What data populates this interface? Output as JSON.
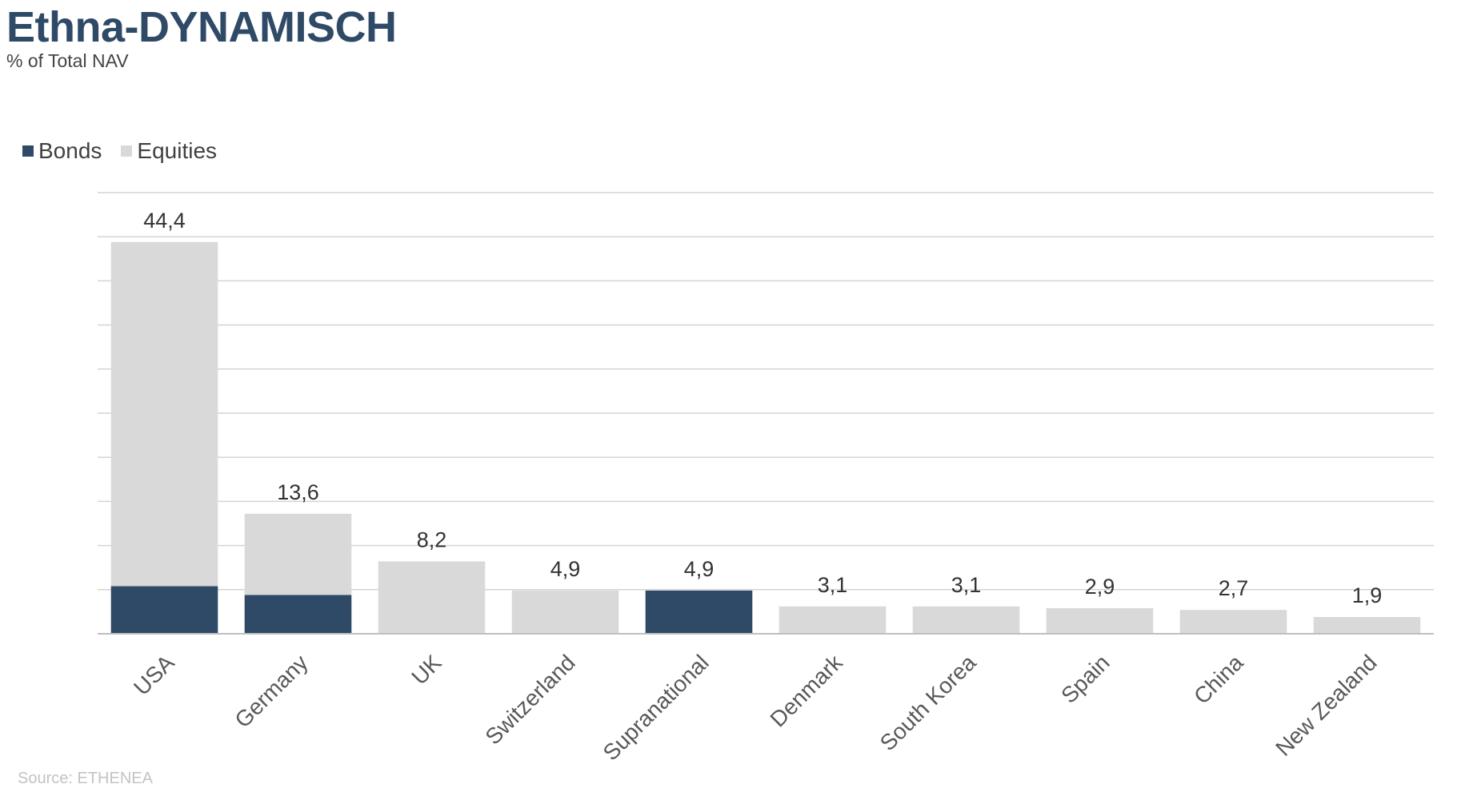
{
  "colors": {
    "bonds": "#2f4a67",
    "equities": "#d9d9d9",
    "grid": "#d4d4d4",
    "text": "#404040"
  },
  "legend": {
    "items": [
      {
        "label": "Bonds",
        "color": "#2f4a67"
      },
      {
        "label": "Equities",
        "color": "#d9d9d9"
      }
    ]
  },
  "source": "Source: ETHENEA",
  "chart_data": {
    "type": "bar",
    "stacked": true,
    "title": "Ethna-DYNAMISCH",
    "subtitle": "% of Total NAV",
    "categories": [
      "USA",
      "Germany",
      "UK",
      "Switzerland",
      "Supranational",
      "Denmark",
      "South Korea",
      "Spain",
      "China",
      "New Zealand"
    ],
    "series": [
      {
        "name": "Bonds",
        "values": [
          5.4,
          4.4,
          0,
          0,
          4.9,
          0,
          0,
          0,
          0,
          0
        ]
      },
      {
        "name": "Equities",
        "values": [
          39.0,
          9.2,
          8.2,
          4.9,
          0,
          3.1,
          3.1,
          2.9,
          2.7,
          1.9
        ]
      }
    ],
    "totals": [
      "44,4",
      "13,6",
      "8,2",
      "4,9",
      "4,9",
      "3,1",
      "3,1",
      "2,9",
      "2,7",
      "1,9"
    ],
    "ylim": [
      0,
      50
    ],
    "grid_step": 5,
    "grid": true,
    "legend_position": "top-left"
  }
}
